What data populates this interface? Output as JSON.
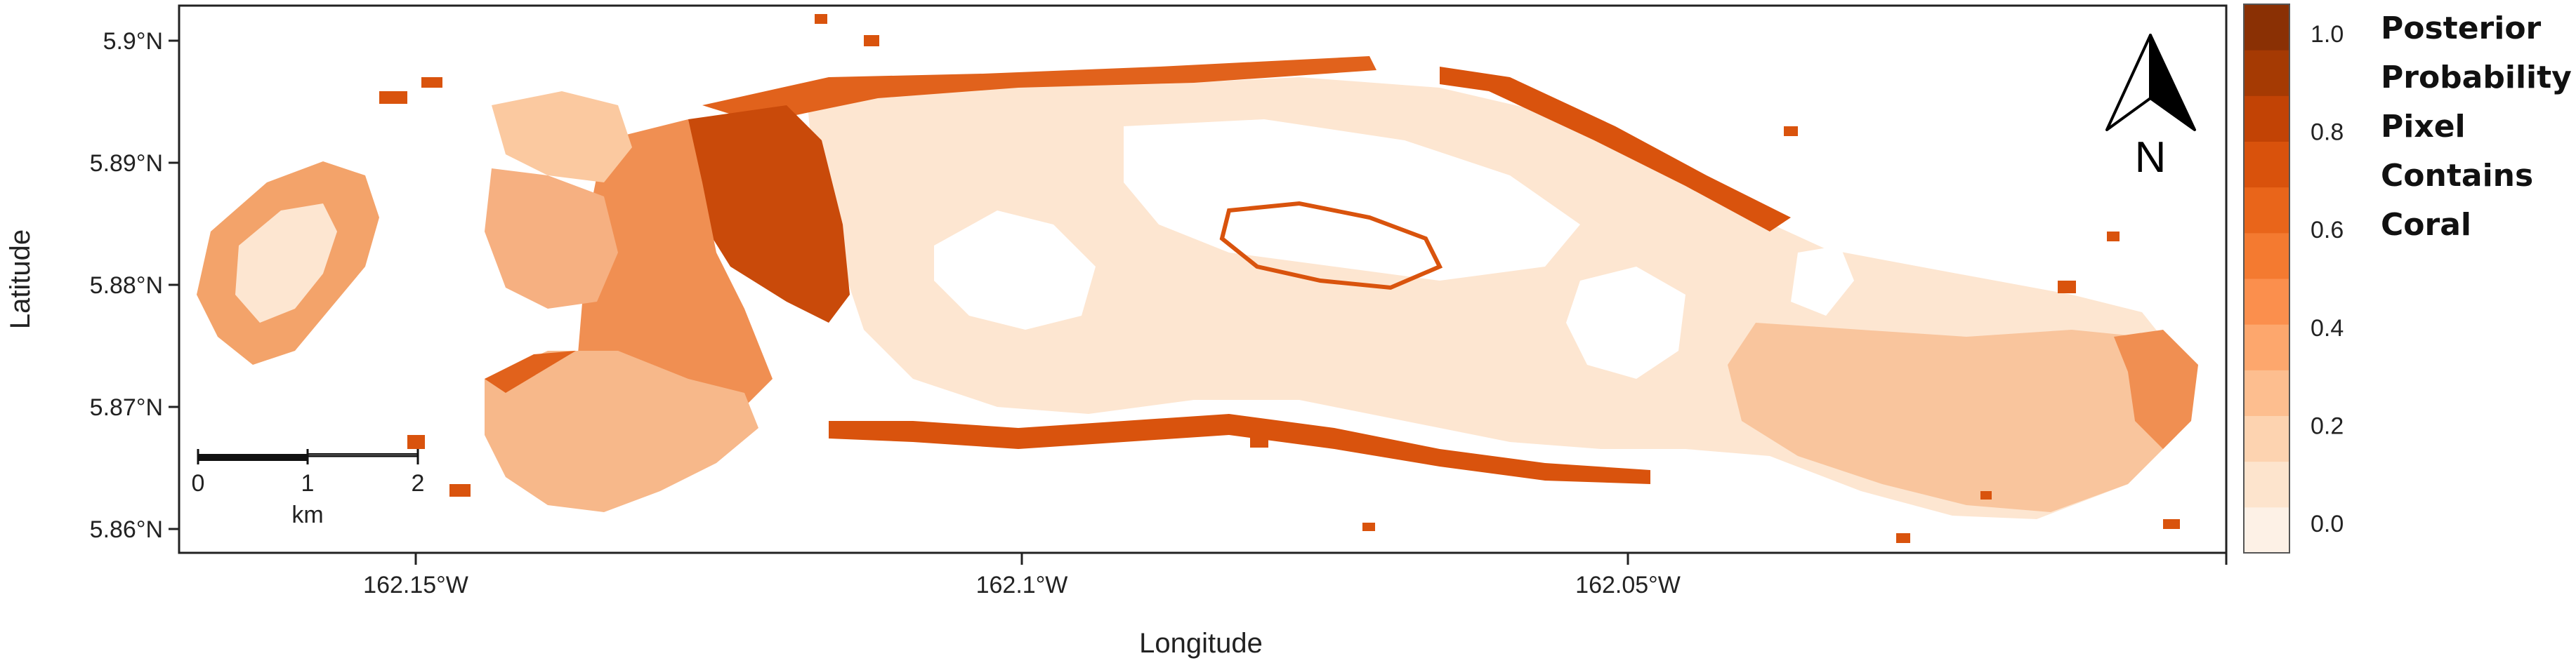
{
  "map": {
    "x_axis_title": "Longitude",
    "y_axis_title": "Latitude",
    "x_ticks": [
      "162.15°W",
      "162.1°W",
      "162.05°W"
    ],
    "y_ticks": [
      "5.9°N",
      "5.89°N",
      "5.88°N",
      "5.87°N",
      "5.86°N"
    ]
  },
  "legend": {
    "title_lines": [
      "Posterior",
      "Probability",
      "Pixel",
      "Contains",
      "Coral"
    ],
    "tick_labels": [
      "1.0",
      "0.8",
      "0.6",
      "0.4",
      "0.2",
      "0.0"
    ],
    "scale_min": 0.0,
    "scale_max": 1.0,
    "colors": [
      "#fdf1e6",
      "#fde4cd",
      "#fdd3b0",
      "#fdbe8f",
      "#fda76d",
      "#fb8f4d",
      "#f47a30",
      "#e9651a",
      "#d9520c",
      "#c24305",
      "#a53a03",
      "#8a3004"
    ]
  },
  "north_arrow": {
    "letter": "N"
  },
  "scale_bar": {
    "ticks": [
      "0",
      "1",
      "2"
    ],
    "unit": "km"
  },
  "palette": {
    "light": "#fde6d1",
    "medium": "#f6a46a",
    "dark": "#d9530d",
    "darkest": "#b53f06"
  }
}
